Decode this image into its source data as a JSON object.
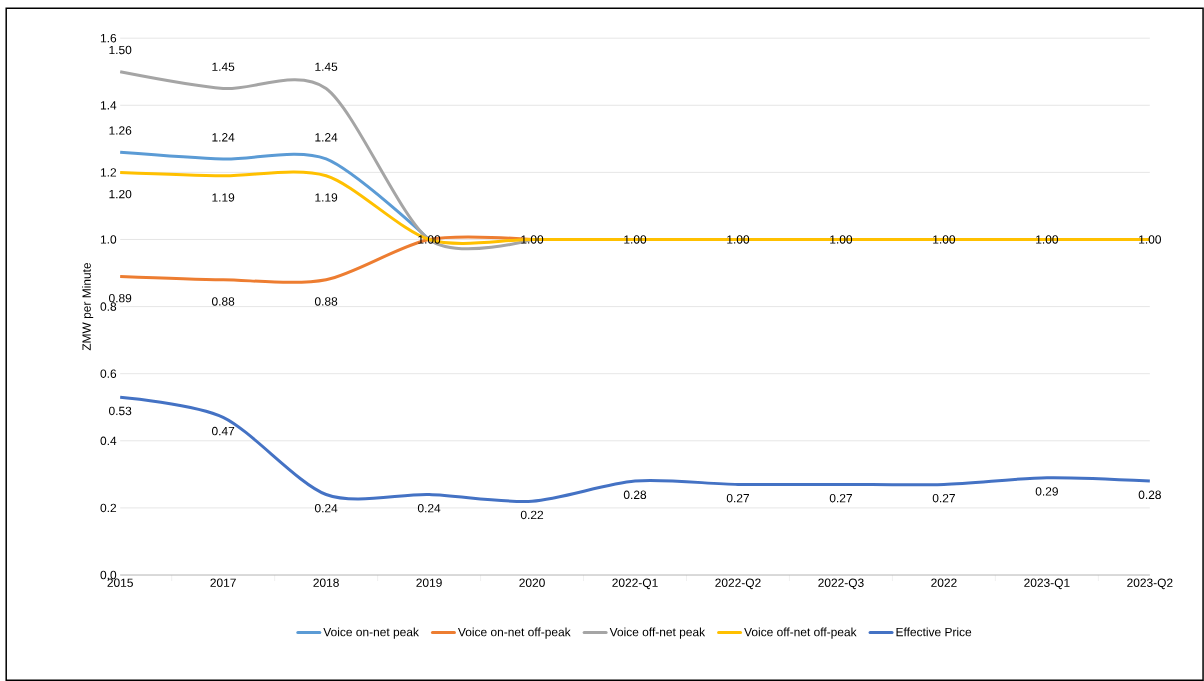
{
  "chart_data": {
    "type": "line",
    "ylabel": "ZMW per Minute",
    "categories": [
      "2015",
      "2017",
      "2018",
      "2019",
      "2020",
      "2022-Q1",
      "2022-Q2",
      "2022-Q3",
      "2022",
      "2023-Q1",
      "2023-Q2"
    ],
    "series": [
      {
        "name": "Voice on-net peak",
        "color": "#5b9bd5",
        "values": [
          1.26,
          1.24,
          1.24,
          1.0,
          null,
          null,
          null,
          null,
          null,
          null,
          null
        ],
        "value_labels": [
          "1.26",
          "1.24",
          "1.24",
          null,
          null,
          null,
          null,
          null,
          null,
          null,
          null
        ]
      },
      {
        "name": "Voice on-net off-peak",
        "color": "#ed7d31",
        "values": [
          0.89,
          0.88,
          0.88,
          1.0,
          1.0,
          null,
          null,
          null,
          null,
          null,
          null
        ],
        "value_labels": [
          "0.89",
          "0.88",
          "0.88",
          null,
          null,
          null,
          null,
          null,
          null,
          null,
          null
        ]
      },
      {
        "name": "Voice off-net peak",
        "color": "#a5a5a5",
        "values": [
          1.5,
          1.45,
          1.45,
          1.0,
          1.0,
          null,
          null,
          null,
          null,
          null,
          null
        ],
        "value_labels": [
          "1.50",
          "1.45",
          "1.45",
          null,
          null,
          null,
          null,
          null,
          null,
          null,
          null
        ]
      },
      {
        "name": "Voice off-net off-peak",
        "color": "#ffc000",
        "values": [
          1.2,
          1.19,
          1.19,
          1.0,
          1.0,
          1.0,
          1.0,
          1.0,
          1.0,
          1.0,
          1.0
        ],
        "value_labels": [
          "1.20",
          "1.19",
          "1.19",
          "1.00",
          "1.00",
          "1.00",
          "1.00",
          "1.00",
          "1.00",
          "1.00",
          "1.00"
        ]
      },
      {
        "name": "Effective Price",
        "color": "#4472c4",
        "values": [
          0.53,
          0.47,
          0.24,
          0.24,
          0.22,
          0.28,
          0.27,
          0.27,
          0.27,
          0.29,
          0.28
        ]
      }
    ],
    "ylim": [
      0,
      1.6
    ],
    "yticks": [
      {
        "value": 0,
        "label": "0.0"
      },
      {
        "value": 0.2,
        "label": "0.2"
      },
      {
        "value": 0.4,
        "label": "0.4"
      },
      {
        "value": 0.6,
        "label": "0.6"
      },
      {
        "value": 0.8,
        "label": "0.8"
      },
      {
        "value": 1.0,
        "label": "1.0"
      },
      {
        "value": 1.2,
        "label": "1.2"
      },
      {
        "value": 1.4,
        "label": "1.4"
      },
      {
        "value": 1.6,
        "label": "1.6"
      }
    ],
    "grid": "y",
    "legend": "bottom",
    "marker": "none",
    "line_style": "solid",
    "data_labels": true
  }
}
